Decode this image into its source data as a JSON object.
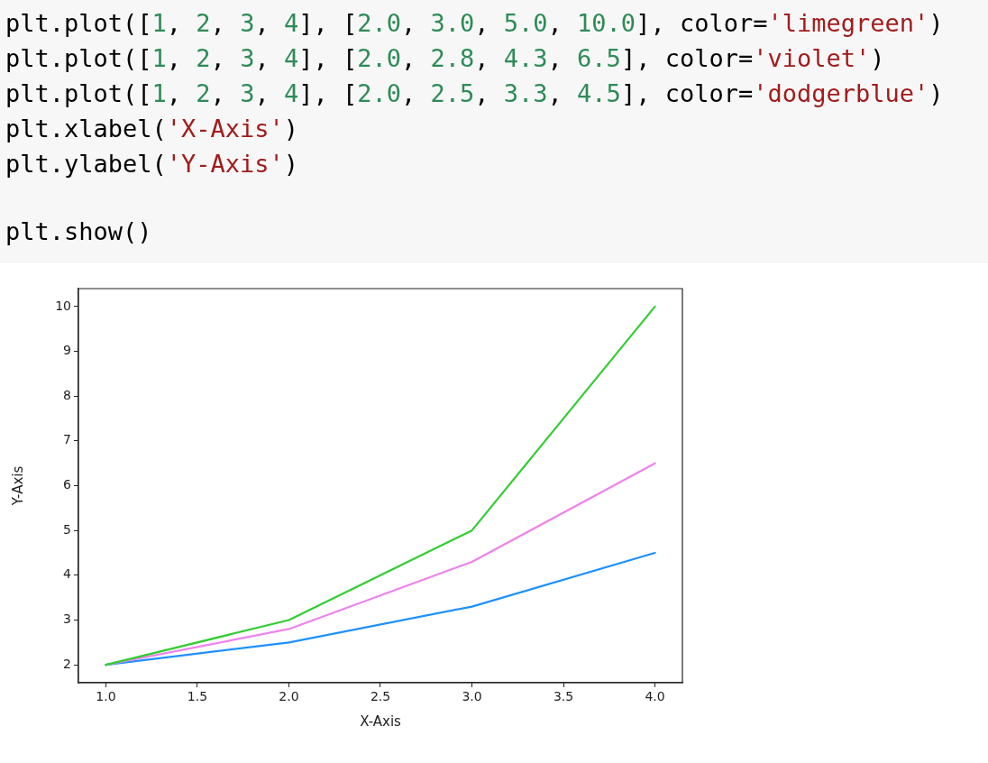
{
  "chart_data": {
    "type": "line",
    "xlabel": "X-Axis",
    "ylabel": "Y-Axis",
    "x": [
      1,
      2,
      3,
      4
    ],
    "series": [
      {
        "color": "#32cd32",
        "values": [
          2.0,
          3.0,
          5.0,
          10.0
        ]
      },
      {
        "color": "#ee82ee",
        "values": [
          2.0,
          2.8,
          4.3,
          6.5
        ]
      },
      {
        "color": "#1e90ff",
        "values": [
          2.0,
          2.5,
          3.3,
          4.5
        ]
      }
    ],
    "xlim": [
      0.85,
      4.15
    ],
    "ylim": [
      1.6,
      10.4
    ],
    "xticks": [
      {
        "value": 1,
        "label": "1.0"
      },
      {
        "value": 1.5,
        "label": "1.5"
      },
      {
        "value": 2,
        "label": "2.0"
      },
      {
        "value": 2.5,
        "label": "2.5"
      },
      {
        "value": 3,
        "label": "3.0"
      },
      {
        "value": 3.5,
        "label": "3.5"
      },
      {
        "value": 4,
        "label": "4.0"
      }
    ],
    "yticks": [
      2,
      3,
      4,
      5,
      6,
      7,
      8,
      9,
      10
    ],
    "grid": false,
    "legend": false,
    "marker": "none",
    "line_style": "solid",
    "annotations": [
      "plt.plot([1, 2, 3, 4], [2.0, 3.0, 5.0, 10.0], color='limegreen')",
      "plt.plot([1, 2, 3, 4], [2.0, 2.8, 4.3, 6.5], color='violet')",
      "plt.plot([1, 2, 3, 4], [2.0, 2.5, 3.3, 4.5], color='dodgerblue')",
      "plt.xlabel('X-Axis')",
      "plt.ylabel('Y-Axis')",
      "plt.show()"
    ]
  }
}
